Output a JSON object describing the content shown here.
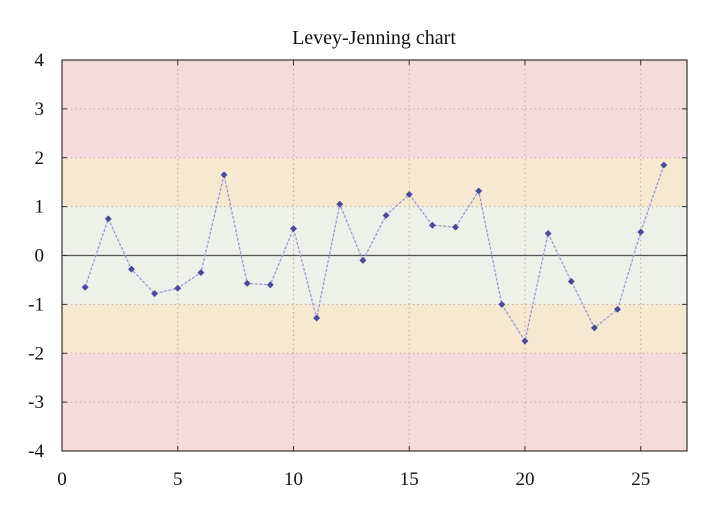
{
  "chart_data": {
    "type": "line",
    "title": "Levey-Jenning chart",
    "xlabel": "",
    "ylabel": "",
    "xlim": [
      0,
      27
    ],
    "ylim": [
      -4,
      4
    ],
    "xticks": [
      0,
      5,
      10,
      15,
      20,
      25
    ],
    "yticks": [
      4,
      3,
      2,
      1,
      0,
      -1,
      -2,
      -3,
      -4
    ],
    "xtick_labels": [
      "0",
      "5",
      "10",
      "15",
      "20",
      "25"
    ],
    "ytick_labels": [
      "4",
      "3",
      "2",
      "1",
      "0",
      "-1",
      "-2",
      "-3",
      "-4"
    ],
    "grid": true,
    "legend": "none",
    "bands": [
      {
        "from": 2,
        "to": 4,
        "color": "#f5dcdc"
      },
      {
        "from": -4,
        "to": -2,
        "color": "#f5dcdc"
      },
      {
        "from": 1,
        "to": 2,
        "color": "#f7e8d2"
      },
      {
        "from": -2,
        "to": -1,
        "color": "#f7e8d2"
      },
      {
        "from": -1,
        "to": 1,
        "color": "#edf1ea"
      }
    ],
    "reference_line": 0,
    "series": [
      {
        "x": [
          1,
          2,
          3,
          4,
          5,
          6,
          7,
          8,
          9,
          10,
          11,
          12,
          13,
          14,
          15,
          16,
          17,
          18,
          19,
          20,
          21,
          22,
          23,
          24,
          25,
          26
        ],
        "values": [
          -0.65,
          0.75,
          -0.28,
          -0.78,
          -0.67,
          -0.35,
          1.65,
          -0.57,
          -0.6,
          0.55,
          -1.28,
          1.05,
          -0.1,
          0.82,
          1.25,
          0.62,
          0.58,
          1.32,
          -1.0,
          -1.75,
          0.45,
          -0.53,
          -1.48,
          -1.1,
          0.48,
          1.85
        ],
        "line_color": "#9a9ad6",
        "marker_color": "#4a4a9a"
      }
    ]
  },
  "colors": {
    "axis": "#333333",
    "grid": "#c8a8a8",
    "reference_line": "#555555"
  }
}
